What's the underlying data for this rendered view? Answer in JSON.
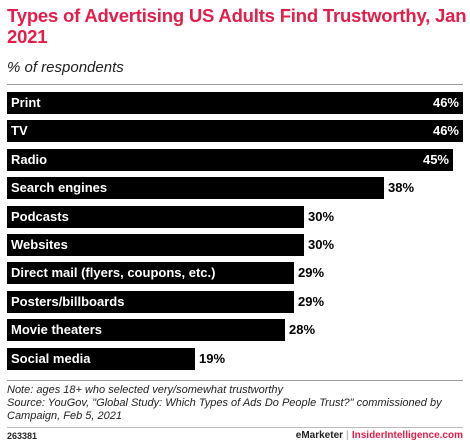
{
  "header": {
    "title": "Types of Advertising US Adults Find Trustworthy, Jan 2021",
    "subtitle": "% of respondents"
  },
  "chart_data": {
    "type": "bar",
    "orientation": "horizontal",
    "title": "Types of Advertising US Adults Find Trustworthy, Jan 2021",
    "subtitle": "% of respondents",
    "categories": [
      "Print",
      "TV",
      "Radio",
      "Search engines",
      "Podcasts",
      "Websites",
      "Direct mail (flyers, coupons, etc.)",
      "Posters/billboards",
      "Movie theaters",
      "Social media"
    ],
    "values": [
      46,
      46,
      45,
      38,
      30,
      30,
      29,
      29,
      28,
      19
    ],
    "value_labels": [
      "46%",
      "46%",
      "45%",
      "38%",
      "30%",
      "30%",
      "29%",
      "29%",
      "28%",
      "19%"
    ],
    "xlim": [
      0,
      46
    ],
    "grid": false,
    "legend": "none",
    "bar_color": "#000000"
  },
  "notes": {
    "line1": "Note: ages 18+ who selected very/somewhat trustworthy",
    "line2": "Source: YouGov, \"Global Study: Which Types of Ads Do People Trust?\" commissioned by Campaign, Feb 5, 2021"
  },
  "footer": {
    "chart_id": "263381",
    "brand_left": "eMarketer",
    "separator": "|",
    "brand_right": "InsiderIntelligence.com"
  },
  "colors": {
    "accent": "#e31e4a",
    "bar": "#000000",
    "bar_text": "#ffffff"
  }
}
